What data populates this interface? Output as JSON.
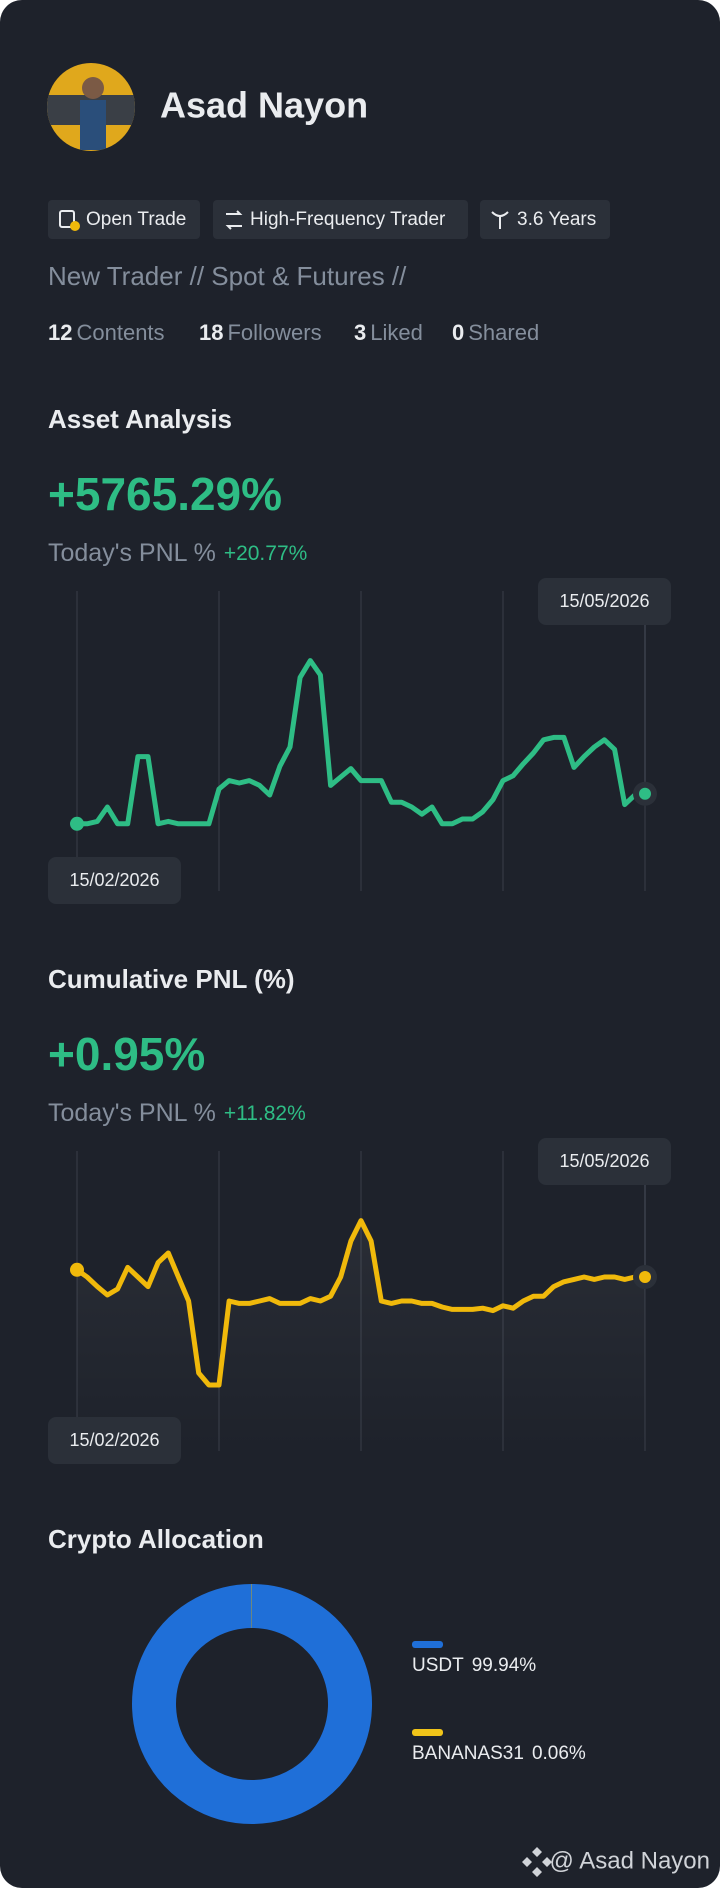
{
  "profile": {
    "name": "Asad Nayon",
    "tags": [
      "Open Trade",
      "High-Frequency Trader",
      "3.6 Years"
    ],
    "bio": "New Trader // Spot & Futures //",
    "stats": [
      {
        "count": "12",
        "label": "Contents"
      },
      {
        "count": "18",
        "label": "Followers"
      },
      {
        "count": "3",
        "label": "Liked"
      },
      {
        "count": "0",
        "label": "Shared"
      }
    ]
  },
  "chart_data": [
    {
      "type": "line",
      "title": "Asset Analysis",
      "headline": "+5765.29%",
      "subtitle": "Today's PNL %",
      "today_change": "+20.77%",
      "color": "#2ebd85",
      "area": false,
      "ylim": [
        0,
        100
      ],
      "categories": [
        "15/02/2026",
        null,
        null,
        null,
        null,
        null,
        null,
        null,
        null,
        null,
        null,
        null,
        null,
        null,
        null,
        null,
        null,
        null,
        null,
        null,
        null,
        null,
        null,
        null,
        null,
        null,
        null,
        null,
        null,
        null,
        null,
        null,
        null,
        null,
        null,
        null,
        null,
        null,
        null,
        null,
        null,
        null,
        null,
        null,
        null,
        null,
        null,
        null,
        null,
        null,
        null,
        null,
        null,
        null,
        null,
        null,
        "15/05/2026"
      ],
      "values": [
        22.4,
        22.4,
        23.2,
        28,
        22.4,
        22.4,
        44.8,
        44.8,
        22.4,
        23.2,
        22.4,
        22.4,
        22.4,
        22.4,
        34,
        36.8,
        36,
        36.8,
        35.2,
        32,
        41.6,
        48,
        71.2,
        76.8,
        72,
        35.2,
        38,
        40.8,
        36.8,
        36.8,
        36.8,
        29.6,
        29.6,
        28,
        25.6,
        28,
        22.4,
        22.4,
        24,
        24,
        26.4,
        30.4,
        36.8,
        38.4,
        42.4,
        46,
        50.4,
        51.2,
        51.2,
        41.2,
        44.8,
        48,
        50.4,
        47.2,
        28.8,
        32,
        32.4
      ]
    },
    {
      "type": "line",
      "title": "Cumulative PNL (%)",
      "headline": "+0.95%",
      "subtitle": "Today's PNL %",
      "today_change": "+11.82%",
      "color": "#f0b90b",
      "area": true,
      "ylim": [
        0,
        100
      ],
      "categories": [
        "15/02/2026",
        null,
        null,
        null,
        null,
        null,
        null,
        null,
        null,
        null,
        null,
        null,
        null,
        null,
        null,
        null,
        null,
        null,
        null,
        null,
        null,
        null,
        null,
        null,
        null,
        null,
        null,
        null,
        null,
        null,
        null,
        null,
        null,
        null,
        null,
        null,
        null,
        null,
        null,
        null,
        null,
        null,
        null,
        null,
        null,
        null,
        null,
        null,
        null,
        null,
        null,
        null,
        null,
        null,
        null,
        null,
        "15/05/2026"
      ],
      "values": [
        60.4,
        58,
        54.8,
        52,
        54,
        61.2,
        58,
        54.8,
        62.8,
        66,
        58,
        50,
        26,
        22,
        22,
        50,
        49.2,
        49.2,
        50,
        50.8,
        49.2,
        49.2,
        49.2,
        50.8,
        50,
        51.6,
        58,
        70,
        76.8,
        70,
        50,
        49.2,
        50,
        50,
        49.2,
        49.2,
        48,
        47.2,
        47.2,
        47.2,
        47.6,
        46.8,
        48.4,
        47.6,
        50,
        51.6,
        51.6,
        54.8,
        56.4,
        57.2,
        58,
        57.2,
        58,
        58,
        57.2,
        58,
        58
      ]
    },
    {
      "type": "pie",
      "title": "Crypto Allocation",
      "categories": [
        "USDT",
        "BANANAS31"
      ],
      "values": [
        99.94,
        0.06
      ],
      "value_labels": [
        "99.94%",
        "0.06%"
      ],
      "colors": [
        "#1f6fd8",
        "#f0c419"
      ]
    }
  ],
  "footer": "@ Asad Nayon"
}
